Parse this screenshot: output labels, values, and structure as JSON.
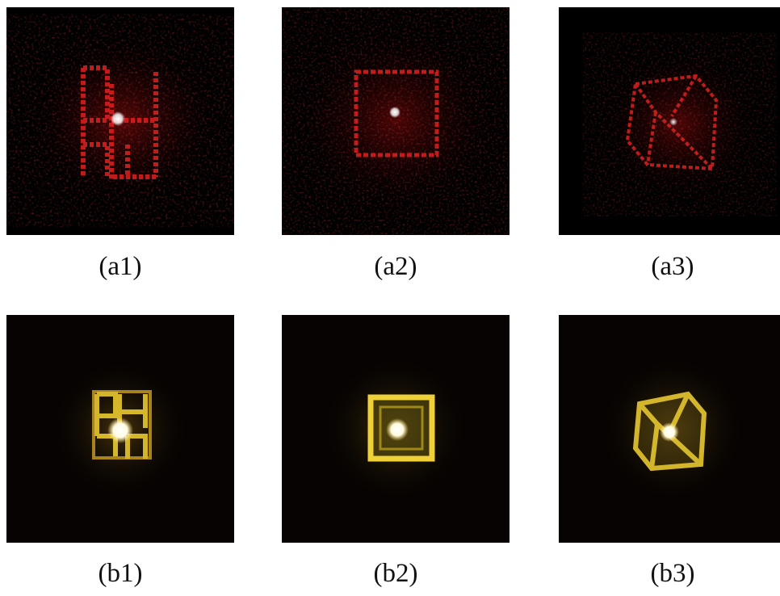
{
  "figure": {
    "panels": [
      {
        "id": "a1",
        "caption": "(a1)",
        "row": "a",
        "col": 1,
        "tone": "red",
        "pattern": "letters"
      },
      {
        "id": "a2",
        "caption": "(a2)",
        "row": "a",
        "col": 2,
        "tone": "red",
        "pattern": "square"
      },
      {
        "id": "a3",
        "caption": "(a3)",
        "row": "a",
        "col": 3,
        "tone": "red",
        "pattern": "cube"
      },
      {
        "id": "b1",
        "caption": "(b1)",
        "row": "b",
        "col": 1,
        "tone": "yellow",
        "pattern": "letters"
      },
      {
        "id": "b2",
        "caption": "(b2)",
        "row": "b",
        "col": 2,
        "tone": "yellow",
        "pattern": "square"
      },
      {
        "id": "b3",
        "caption": "(b3)",
        "row": "b",
        "col": 3,
        "tone": "yellow",
        "pattern": "cube"
      }
    ],
    "colors": {
      "background": "#000000",
      "red_speckle": "#e01818",
      "yellow_glow": "#f2d23a",
      "center_spot": "#ffffff"
    }
  }
}
